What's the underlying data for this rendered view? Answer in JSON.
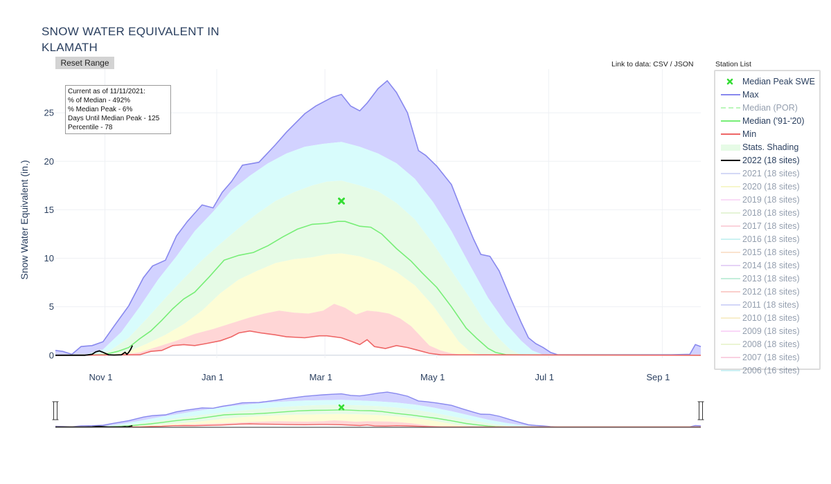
{
  "title_lines": [
    "SNOW WATER EQUIVALENT IN",
    "KLAMATH"
  ],
  "reset_button": "Reset Range",
  "data_links": {
    "prefix": "Link to data:",
    "csv": "CSV",
    "sep": "/",
    "json": "JSON"
  },
  "station_list_label": "Station List",
  "info_box": {
    "lines": [
      "Current as of 11/11/2021:",
      "% of Median - 492%",
      "% Median Peak - 6%",
      "Days Until Median Peak - 125",
      "Percentile - 78"
    ]
  },
  "colors": {
    "max": "#8888ee",
    "median": "#77ee77",
    "min": "#ee6666",
    "current": "#000000",
    "band_max": "#d2d2ff",
    "band_90": "#d8fcfc",
    "band_70": "#e6fbe6",
    "band_50": "#fdfdd6",
    "band_30": "#ffd6d6",
    "peak_marker": "#33dd33"
  },
  "legend": [
    {
      "label": "Median Peak SWE",
      "kind": "marker",
      "color": "#33dd33",
      "active": true
    },
    {
      "label": "Max",
      "kind": "line",
      "color": "#8888ee",
      "active": true
    },
    {
      "label": "Median (POR)",
      "kind": "dash",
      "color": "#77ee77",
      "active": false
    },
    {
      "label": "Median ('91-'20)",
      "kind": "line",
      "color": "#77ee77",
      "active": true
    },
    {
      "label": "Min",
      "kind": "line",
      "color": "#ee6666",
      "active": true
    },
    {
      "label": "Stats. Shading",
      "kind": "fill",
      "color": "#e6fbe6",
      "active": true
    },
    {
      "label": "2022 (18 sites)",
      "kind": "line",
      "color": "#000000",
      "active": true
    },
    {
      "label": "2021 (18 sites)",
      "kind": "line",
      "color": "#aab4ee",
      "active": false
    },
    {
      "label": "2020 (18 sites)",
      "kind": "line",
      "color": "#eeee99",
      "active": false
    },
    {
      "label": "2019 (18 sites)",
      "kind": "line",
      "color": "#f7b8f0",
      "active": false
    },
    {
      "label": "2018 (18 sites)",
      "kind": "line",
      "color": "#ccebb0",
      "active": false
    },
    {
      "label": "2017 (18 sites)",
      "kind": "line",
      "color": "#f7a8b8",
      "active": false
    },
    {
      "label": "2016 (18 sites)",
      "kind": "line",
      "color": "#99e6e6",
      "active": false
    },
    {
      "label": "2015 (18 sites)",
      "kind": "line",
      "color": "#f7c8a0",
      "active": false
    },
    {
      "label": "2014 (18 sites)",
      "kind": "line",
      "color": "#cfa8ee",
      "active": false
    },
    {
      "label": "2013 (18 sites)",
      "kind": "line",
      "color": "#88dfb8",
      "active": false
    },
    {
      "label": "2012 (18 sites)",
      "kind": "line",
      "color": "#f79f99",
      "active": false
    },
    {
      "label": "2011 (18 sites)",
      "kind": "line",
      "color": "#a8aef2",
      "active": false
    },
    {
      "label": "2010 (18 sites)",
      "kind": "line",
      "color": "#f2df99",
      "active": false
    },
    {
      "label": "2009 (18 sites)",
      "kind": "line",
      "color": "#f7b0f2",
      "active": false
    },
    {
      "label": "2008 (18 sites)",
      "kind": "line",
      "color": "#d8ecaa",
      "active": false
    },
    {
      "label": "2007 (18 sites)",
      "kind": "line",
      "color": "#f7a4c4",
      "active": false
    },
    {
      "label": "2006 (16 sites)",
      "kind": "line",
      "color": "#99e2ea",
      "active": false
    }
  ],
  "chart_data": {
    "type": "area",
    "title": "SNOW WATER EQUIVALENT IN KLAMATH",
    "ylabel": "Snow Water Equivalent (in.)",
    "xlabel": "",
    "x_ticks": [
      "Nov 1",
      "Jan 1",
      "Mar 1",
      "May 1",
      "Jul 1",
      "Sep 1"
    ],
    "y_ticks": [
      "0",
      "5",
      "10",
      "15",
      "20",
      "25"
    ],
    "x_unit": "days since Oct 1",
    "x_tick_days": [
      31,
      92,
      151,
      212,
      273,
      335
    ],
    "xlim": [
      4,
      356
    ],
    "ylim": [
      -0.3,
      29.5
    ],
    "grid": true,
    "legend_position": "right",
    "median_peak": {
      "x": 160,
      "y": 15.9
    },
    "series": [
      {
        "name": "Max",
        "points": [
          [
            4,
            0.5
          ],
          [
            8,
            0.4
          ],
          [
            13,
            0.1
          ],
          [
            18,
            0.9
          ],
          [
            24,
            1.0
          ],
          [
            30,
            1.4
          ],
          [
            36,
            3.0
          ],
          [
            44,
            5.1
          ],
          [
            52,
            8.0
          ],
          [
            57,
            9.2
          ],
          [
            64,
            9.8
          ],
          [
            70,
            12.3
          ],
          [
            76,
            13.8
          ],
          [
            84,
            15.5
          ],
          [
            90,
            15.2
          ],
          [
            95,
            16.8
          ],
          [
            100,
            17.9
          ],
          [
            106,
            19.6
          ],
          [
            115,
            19.9
          ],
          [
            124,
            21.7
          ],
          [
            130,
            23.0
          ],
          [
            140,
            24.9
          ],
          [
            146,
            25.7
          ],
          [
            150,
            26.1
          ],
          [
            155,
            26.6
          ],
          [
            160,
            26.9
          ],
          [
            165,
            25.7
          ],
          [
            170,
            25.2
          ],
          [
            174,
            26.0
          ],
          [
            180,
            27.5
          ],
          [
            185,
            28.3
          ],
          [
            190,
            27.1
          ],
          [
            196,
            25.0
          ],
          [
            202,
            21.1
          ],
          [
            206,
            20.6
          ],
          [
            212,
            19.5
          ],
          [
            220,
            17.6
          ],
          [
            226,
            14.7
          ],
          [
            232,
            12.0
          ],
          [
            236,
            10.4
          ],
          [
            241,
            10.2
          ],
          [
            246,
            8.7
          ],
          [
            252,
            6.0
          ],
          [
            258,
            3.4
          ],
          [
            262,
            1.8
          ],
          [
            266,
            1.2
          ],
          [
            270,
            0.8
          ],
          [
            274,
            0.3
          ],
          [
            278,
            0.05
          ],
          [
            340,
            0.05
          ],
          [
            350,
            0.1
          ],
          [
            353,
            1.1
          ],
          [
            356,
            0.9
          ]
        ]
      },
      {
        "name": "90th",
        "points": [
          [
            4,
            0
          ],
          [
            20,
            0.05
          ],
          [
            30,
            0.6
          ],
          [
            40,
            2.4
          ],
          [
            50,
            5.0
          ],
          [
            60,
            7.8
          ],
          [
            70,
            10.2
          ],
          [
            80,
            12.8
          ],
          [
            90,
            14.8
          ],
          [
            100,
            17.0
          ],
          [
            110,
            18.5
          ],
          [
            120,
            19.8
          ],
          [
            130,
            20.8
          ],
          [
            140,
            21.5
          ],
          [
            150,
            21.8
          ],
          [
            160,
            22.0
          ],
          [
            170,
            21.5
          ],
          [
            180,
            20.8
          ],
          [
            190,
            19.8
          ],
          [
            200,
            18.2
          ],
          [
            210,
            15.8
          ],
          [
            220,
            12.8
          ],
          [
            230,
            9.3
          ],
          [
            240,
            5.9
          ],
          [
            250,
            3.2
          ],
          [
            258,
            1.5
          ],
          [
            264,
            0.5
          ],
          [
            270,
            0.05
          ],
          [
            356,
            0
          ]
        ]
      },
      {
        "name": "70th",
        "points": [
          [
            4,
            0
          ],
          [
            24,
            0.05
          ],
          [
            34,
            0.5
          ],
          [
            44,
            1.8
          ],
          [
            54,
            3.8
          ],
          [
            64,
            5.9
          ],
          [
            74,
            7.9
          ],
          [
            84,
            9.8
          ],
          [
            94,
            11.5
          ],
          [
            104,
            13.1
          ],
          [
            114,
            14.6
          ],
          [
            124,
            15.9
          ],
          [
            134,
            16.8
          ],
          [
            144,
            17.5
          ],
          [
            152,
            17.9
          ],
          [
            160,
            18.0
          ],
          [
            170,
            17.5
          ],
          [
            180,
            16.9
          ],
          [
            190,
            15.7
          ],
          [
            200,
            14.0
          ],
          [
            210,
            11.5
          ],
          [
            220,
            8.7
          ],
          [
            230,
            5.9
          ],
          [
            238,
            3.5
          ],
          [
            246,
            1.7
          ],
          [
            252,
            0.6
          ],
          [
            258,
            0.05
          ],
          [
            356,
            0
          ]
        ]
      },
      {
        "name": "Median ('91-'20)",
        "points": [
          [
            4,
            0
          ],
          [
            30,
            0.05
          ],
          [
            38,
            0.4
          ],
          [
            44,
            0.8
          ],
          [
            50,
            1.7
          ],
          [
            56,
            2.5
          ],
          [
            62,
            3.6
          ],
          [
            68,
            4.8
          ],
          [
            74,
            5.8
          ],
          [
            80,
            6.5
          ],
          [
            88,
            8.1
          ],
          [
            96,
            9.8
          ],
          [
            104,
            10.3
          ],
          [
            112,
            10.6
          ],
          [
            120,
            11.3
          ],
          [
            128,
            12.2
          ],
          [
            136,
            13.0
          ],
          [
            144,
            13.5
          ],
          [
            152,
            13.6
          ],
          [
            158,
            13.8
          ],
          [
            162,
            13.8
          ],
          [
            170,
            13.3
          ],
          [
            176,
            13.2
          ],
          [
            182,
            12.5
          ],
          [
            190,
            11.0
          ],
          [
            198,
            9.7
          ],
          [
            204,
            8.5
          ],
          [
            212,
            7.0
          ],
          [
            220,
            5.0
          ],
          [
            228,
            2.8
          ],
          [
            234,
            1.7
          ],
          [
            240,
            0.7
          ],
          [
            244,
            0.3
          ],
          [
            250,
            0.05
          ],
          [
            356,
            0
          ]
        ]
      },
      {
        "name": "30th",
        "points": [
          [
            4,
            0
          ],
          [
            34,
            0.05
          ],
          [
            44,
            0.4
          ],
          [
            54,
            1.2
          ],
          [
            64,
            2.1
          ],
          [
            74,
            3.2
          ],
          [
            84,
            4.6
          ],
          [
            94,
            6.4
          ],
          [
            104,
            7.8
          ],
          [
            114,
            8.7
          ],
          [
            124,
            9.5
          ],
          [
            134,
            9.9
          ],
          [
            144,
            10.1
          ],
          [
            152,
            10.4
          ],
          [
            160,
            10.5
          ],
          [
            170,
            10.2
          ],
          [
            180,
            9.6
          ],
          [
            190,
            8.6
          ],
          [
            200,
            7.2
          ],
          [
            210,
            5.1
          ],
          [
            218,
            3.0
          ],
          [
            224,
            1.4
          ],
          [
            230,
            0.4
          ],
          [
            236,
            0.05
          ],
          [
            356,
            0
          ]
        ]
      },
      {
        "name": "10th",
        "points": [
          [
            4,
            0
          ],
          [
            40,
            0.05
          ],
          [
            50,
            0.3
          ],
          [
            60,
            0.9
          ],
          [
            70,
            1.5
          ],
          [
            80,
            2.2
          ],
          [
            90,
            2.7
          ],
          [
            100,
            3.3
          ],
          [
            110,
            3.9
          ],
          [
            118,
            4.3
          ],
          [
            126,
            4.6
          ],
          [
            134,
            4.4
          ],
          [
            142,
            4.3
          ],
          [
            150,
            4.6
          ],
          [
            156,
            5.3
          ],
          [
            162,
            4.9
          ],
          [
            168,
            4.2
          ],
          [
            174,
            4.6
          ],
          [
            180,
            4.5
          ],
          [
            186,
            4.3
          ],
          [
            192,
            3.8
          ],
          [
            198,
            3.0
          ],
          [
            204,
            1.8
          ],
          [
            208,
            1.0
          ],
          [
            214,
            0.5
          ],
          [
            220,
            0.2
          ],
          [
            226,
            0.05
          ],
          [
            356,
            0
          ]
        ]
      },
      {
        "name": "Min",
        "points": [
          [
            4,
            0
          ],
          [
            50,
            0.05
          ],
          [
            56,
            0.4
          ],
          [
            62,
            0.5
          ],
          [
            68,
            1.0
          ],
          [
            74,
            1.1
          ],
          [
            80,
            1.0
          ],
          [
            86,
            1.2
          ],
          [
            94,
            1.5
          ],
          [
            100,
            1.9
          ],
          [
            104,
            2.3
          ],
          [
            110,
            2.5
          ],
          [
            116,
            2.3
          ],
          [
            124,
            2.1
          ],
          [
            130,
            1.9
          ],
          [
            140,
            1.8
          ],
          [
            148,
            2.0
          ],
          [
            152,
            2.0
          ],
          [
            160,
            1.8
          ],
          [
            166,
            1.4
          ],
          [
            170,
            1.1
          ],
          [
            174,
            1.6
          ],
          [
            178,
            0.9
          ],
          [
            184,
            0.7
          ],
          [
            190,
            1.0
          ],
          [
            196,
            0.8
          ],
          [
            202,
            0.5
          ],
          [
            208,
            0.2
          ],
          [
            214,
            0.05
          ],
          [
            356,
            0
          ]
        ]
      },
      {
        "name": "2022 (18 sites)",
        "points": [
          [
            4,
            0
          ],
          [
            20,
            0
          ],
          [
            24,
            0.1
          ],
          [
            26,
            0.35
          ],
          [
            28,
            0.45
          ],
          [
            30,
            0.3
          ],
          [
            33,
            0.05
          ],
          [
            36,
            0.02
          ],
          [
            40,
            0.05
          ],
          [
            42,
            0.3
          ],
          [
            43,
            0.1
          ],
          [
            44,
            0.3
          ],
          [
            45,
            0.6
          ],
          [
            46,
            1.0
          ]
        ]
      }
    ]
  }
}
